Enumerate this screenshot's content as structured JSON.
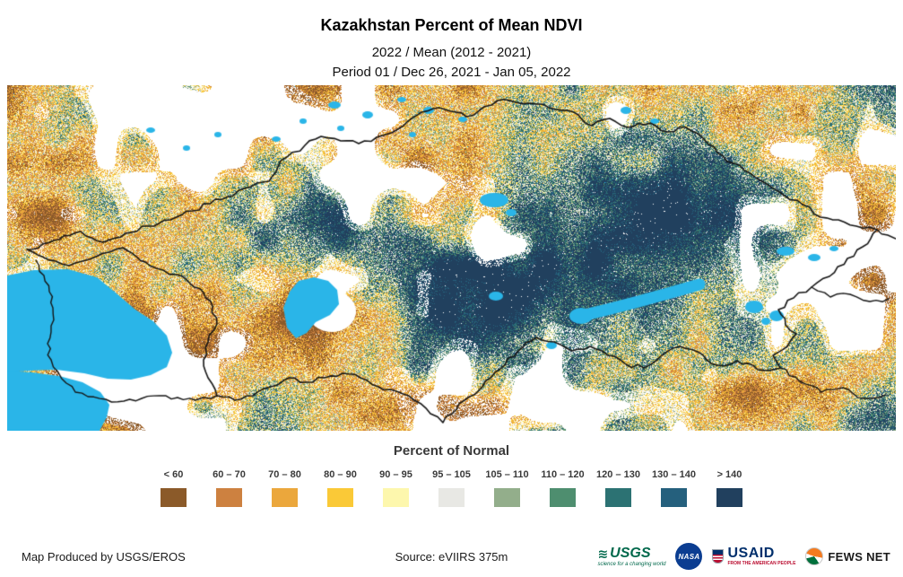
{
  "header": {
    "title": "Kazakhstan Percent of Mean NDVI",
    "subtitle_line1": "2022 / Mean (2012 - 2021)",
    "subtitle_line2": "Period 01 / Dec 26, 2021 - Jan 05, 2022"
  },
  "map": {
    "water_color": "#2ab5e8",
    "border_color": "#151515",
    "snow_color": "#ffffff"
  },
  "legend": {
    "title": "Percent of Normal",
    "classes": [
      {
        "label": "< 60",
        "color": "#8b5a29"
      },
      {
        "label": "60 – 70",
        "color": "#cd8140"
      },
      {
        "label": "70 – 80",
        "color": "#eba73c"
      },
      {
        "label": "80 – 90",
        "color": "#fac937"
      },
      {
        "label": "90 – 95",
        "color": "#fdf7ad"
      },
      {
        "label": "95 – 105",
        "color": "#e8e8e4"
      },
      {
        "label": "105 – 110",
        "color": "#93ae8b"
      },
      {
        "label": "110 – 120",
        "color": "#4e8e6f"
      },
      {
        "label": "120 – 130",
        "color": "#2c7273"
      },
      {
        "label": "130 – 140",
        "color": "#25607d"
      },
      {
        "label": "> 140",
        "color": "#21405e"
      }
    ]
  },
  "footer": {
    "credit": "Map Produced by USGS/EROS",
    "source": "Source: eVIIRS 375m",
    "logos": {
      "usgs": "USGS",
      "usgs_tagline": "science for a changing world",
      "nasa": "NASA",
      "usaid": "USAID",
      "usaid_tagline": "FROM THE AMERICAN PEOPLE",
      "fewsnet": "FEWS NET"
    }
  }
}
